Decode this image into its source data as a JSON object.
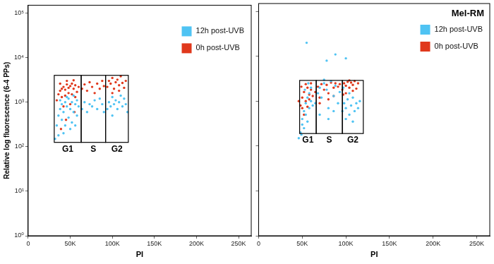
{
  "chart_data": [
    {
      "type": "scatter",
      "xlabel": "PI",
      "ylabel": "Relative log fluorescence (6-4 PPs)",
      "log": "y",
      "grid": false,
      "legend": "upper right",
      "xlim": [
        0,
        265000
      ],
      "ylim": [
        1,
        150000
      ],
      "xticks": [
        0,
        {
          "value": 50000,
          "label": "50K"
        },
        {
          "value": 100000,
          "label": "100K"
        },
        {
          "value": 150000,
          "label": "150K"
        },
        {
          "value": 200000,
          "label": "200K"
        },
        {
          "value": 250000,
          "label": "250K"
        }
      ],
      "yticks": [
        {
          "value": 1,
          "label": "10⁰"
        },
        {
          "value": 10,
          "label": "10¹"
        },
        {
          "value": 100,
          "label": "10²"
        },
        {
          "value": 1000,
          "label": "10³"
        },
        {
          "value": 10000,
          "label": "10⁴"
        },
        {
          "value": 100000,
          "label": "10⁵"
        }
      ],
      "gates": [
        {
          "label": "G1",
          "x": [
            31000,
            63000
          ],
          "y": [
            125,
            4000
          ]
        },
        {
          "label": "S",
          "x": [
            63000,
            92000
          ],
          "y": [
            125,
            4000
          ]
        },
        {
          "label": "G2",
          "x": [
            92000,
            119000
          ],
          "y": [
            125,
            4000
          ]
        }
      ],
      "series": [
        {
          "name": "12h post-UVB",
          "color": "#4fc3f3",
          "x": [
            34000,
            36000,
            38000,
            40000,
            42000,
            44000,
            46000,
            48000,
            50000,
            52000,
            54000,
            56000,
            58000,
            60000,
            40000,
            44000,
            48000,
            52000,
            56000,
            38000,
            46000,
            54000,
            42000,
            50000,
            36000,
            58000,
            32000,
            64000,
            67000,
            70000,
            73000,
            76000,
            79000,
            82000,
            85000,
            88000,
            90000,
            94000,
            96000,
            98000,
            100000,
            102000,
            104000,
            106000,
            108000,
            110000,
            112000,
            114000,
            116000,
            118000,
            100000
          ],
          "values": [
            300,
            500,
            700,
            900,
            600,
            1000,
            800,
            1200,
            700,
            1000,
            600,
            900,
            500,
            800,
            400,
            300,
            450,
            350,
            300,
            1100,
            1300,
            1400,
            200,
            250,
            180,
            1100,
            150,
            700,
            1000,
            600,
            900,
            800,
            1100,
            700,
            1200,
            900,
            600,
            700,
            1000,
            800,
            1300,
            900,
            1100,
            700,
            1000,
            1400,
            800,
            1200,
            900,
            600,
            500
          ]
        },
        {
          "name": "0h post-UVB",
          "color": "#e0381c",
          "x": [
            36000,
            38000,
            40000,
            42000,
            44000,
            46000,
            48000,
            50000,
            52000,
            54000,
            56000,
            58000,
            40000,
            44000,
            48000,
            52000,
            56000,
            38000,
            46000,
            54000,
            60000,
            34000,
            42000,
            50000,
            45000,
            39000,
            55000,
            64000,
            67000,
            70000,
            73000,
            76000,
            79000,
            82000,
            85000,
            88000,
            90000,
            94000,
            96000,
            98000,
            100000,
            102000,
            104000,
            106000,
            108000,
            110000,
            112000,
            114000,
            116000,
            100000,
            108000
          ],
          "values": [
            1500,
            1800,
            2000,
            2200,
            1900,
            2500,
            2100,
            2300,
            2600,
            2000,
            2400,
            1700,
            1300,
            1400,
            1600,
            1500,
            1300,
            2600,
            3000,
            3100,
            2200,
            1100,
            800,
            900,
            400,
            250,
            600,
            2000,
            2500,
            1800,
            2800,
            2200,
            1600,
            2600,
            2000,
            3000,
            2300,
            2200,
            3000,
            2600,
            3500,
            2000,
            2800,
            3200,
            2400,
            3800,
            2700,
            2100,
            3000,
            1600,
            1800
          ]
        }
      ]
    },
    {
      "type": "scatter",
      "title": "Mel-RM",
      "xlabel": "PI",
      "log": "y",
      "grid": false,
      "legend": "upper right",
      "tick_labels": "x",
      "xlim": [
        0,
        265000
      ],
      "ylim": [
        1,
        150000
      ],
      "xticks": [
        0,
        {
          "value": 50000,
          "label": "50K"
        },
        {
          "value": 100000,
          "label": "100K"
        },
        {
          "value": 150000,
          "label": "150K"
        },
        {
          "value": 200000,
          "label": "200K"
        },
        {
          "value": 250000,
          "label": "250K"
        }
      ],
      "yticks": [
        {
          "value": 1,
          "label": "10⁰"
        },
        {
          "value": 10,
          "label": "10¹"
        },
        {
          "value": 100,
          "label": "10²"
        },
        {
          "value": 1000,
          "label": "10³"
        },
        {
          "value": 10000,
          "label": "10⁴"
        },
        {
          "value": 100000,
          "label": "10⁵"
        }
      ],
      "gates": [
        {
          "label": "G1",
          "x": [
            47000,
            66000
          ],
          "y": [
            190,
            2900
          ]
        },
        {
          "label": "S",
          "x": [
            66000,
            96000
          ],
          "y": [
            190,
            2900
          ]
        },
        {
          "label": "G2",
          "x": [
            96000,
            120000
          ],
          "y": [
            190,
            2900
          ]
        }
      ],
      "series": [
        {
          "name": "12h post-UVB",
          "color": "#4fc3f3",
          "x": [
            48000,
            50000,
            52000,
            54000,
            56000,
            58000,
            60000,
            50000,
            54000,
            58000,
            62000,
            52000,
            56000,
            49000,
            60000,
            46000,
            53000,
            57000,
            65000,
            68000,
            70000,
            72000,
            75000,
            78000,
            80000,
            83000,
            86000,
            88000,
            91000,
            93000,
            70000,
            80000,
            86000,
            75000,
            96000,
            98000,
            100000,
            102000,
            104000,
            106000,
            108000,
            110000,
            112000,
            114000,
            116000,
            100000,
            108000,
            104000,
            97000,
            55000,
            88000,
            78000,
            100000
          ],
          "values": [
            200,
            400,
            600,
            900,
            1200,
            700,
            1000,
            300,
            500,
            1500,
            800,
            250,
            350,
            180,
            2000,
            150,
            1800,
            2500,
            900,
            1500,
            2000,
            1200,
            2500,
            1800,
            700,
            2800,
            1300,
            2200,
            900,
            1600,
            500,
            400,
            600,
            3000,
            600,
            900,
            700,
            1100,
            500,
            800,
            1200,
            600,
            900,
            700,
            1000,
            400,
            350,
            1500,
            2000,
            20000,
            11000,
            8000,
            9000
          ]
        },
        {
          "name": "0h post-UVB",
          "color": "#e0381c",
          "x": [
            48000,
            50000,
            52000,
            54000,
            56000,
            58000,
            60000,
            50000,
            54000,
            58000,
            62000,
            52000,
            56000,
            49000,
            60000,
            46000,
            65000,
            68000,
            70000,
            72000,
            75000,
            78000,
            80000,
            83000,
            86000,
            88000,
            91000,
            93000,
            70000,
            80000,
            86000,
            96000,
            98000,
            100000,
            102000,
            104000,
            106000,
            108000,
            110000,
            112000,
            114000,
            100000,
            108000,
            104000,
            97000
          ],
          "values": [
            800,
            1200,
            1600,
            1000,
            2000,
            1400,
            1800,
            700,
            2400,
            1100,
            1300,
            500,
            750,
            2100,
            2500,
            1000,
            1600,
            2100,
            1200,
            2400,
            1800,
            2300,
            1500,
            2600,
            2000,
            2500,
            2100,
            2400,
            900,
            1100,
            1300,
            1800,
            2500,
            2200,
            2700,
            2000,
            2600,
            2300,
            2800,
            1900,
            2500,
            1500,
            1700,
            2900,
            1400
          ]
        }
      ]
    }
  ]
}
